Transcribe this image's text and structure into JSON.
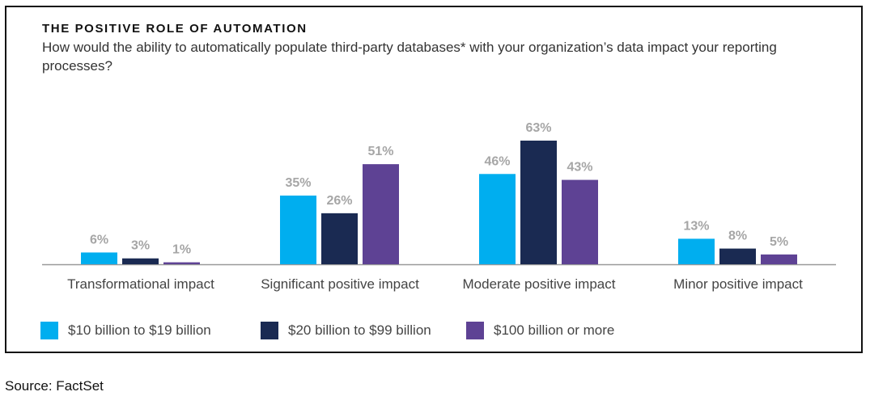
{
  "chart_data": {
    "type": "bar",
    "title": "THE POSITIVE ROLE OF AUTOMATION",
    "subtitle": "How would the ability to automatically populate third-party databases* with your organization’s data impact your reporting processes?",
    "categories": [
      "Transformational impact",
      "Significant positive impact",
      "Moderate positive impact",
      "Minor positive impact"
    ],
    "series": [
      {
        "name": "$10 billion to $19 billion",
        "color": "#00AEEF",
        "values": [
          6,
          35,
          46,
          13
        ]
      },
      {
        "name": "$20 billion to $99 billion",
        "color": "#1A2A52",
        "values": [
          3,
          26,
          63,
          8
        ]
      },
      {
        "name": "$100 billion or more",
        "color": "#5E4294",
        "values": [
          1,
          51,
          43,
          5
        ]
      }
    ],
    "value_suffix": "%",
    "ylim": [
      0,
      63
    ],
    "grid": false,
    "legend_placement": "bottom-left"
  },
  "source": "Source: FactSet"
}
